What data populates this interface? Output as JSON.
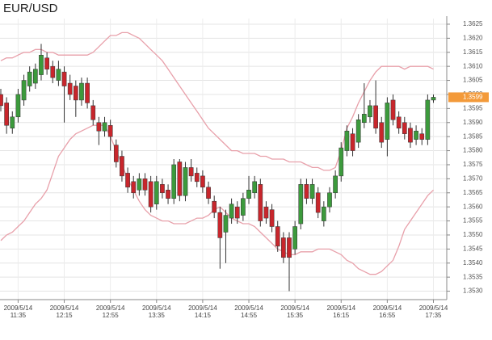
{
  "chart_data": {
    "type": "candlestick",
    "title": "EUR/USD",
    "categories": [
      null,
      null,
      null,
      "2009/5/14 11:35",
      null,
      null,
      null,
      null,
      null,
      null,
      null,
      "2009/5/14 12:15",
      null,
      null,
      null,
      null,
      null,
      null,
      null,
      "2009/5/14 12:55",
      null,
      null,
      null,
      null,
      null,
      null,
      null,
      "2009/5/14 13:35",
      null,
      null,
      null,
      null,
      null,
      null,
      null,
      "2009/5/14 14:15",
      null,
      null,
      null,
      null,
      null,
      null,
      null,
      "2009/5/14 14:55",
      null,
      null,
      null,
      null,
      null,
      null,
      null,
      "2009/5/14 15:35",
      null,
      null,
      null,
      null,
      null,
      null,
      null,
      "2009/5/14 16:15",
      null,
      null,
      null,
      null,
      null,
      null,
      null,
      "2009/5/14 16:55",
      null,
      null,
      null,
      null,
      null,
      null,
      null,
      "2009/5/14 17:35"
    ],
    "open": [
      1.36,
      1.3597,
      1.3588,
      1.3592,
      1.3598,
      1.3603,
      1.3604,
      1.3607,
      1.3613,
      1.361,
      1.3605,
      1.3608,
      1.3604,
      1.3603,
      1.3598,
      1.3604,
      1.3596,
      1.359,
      1.3587,
      1.3589,
      1.3582,
      1.3578,
      1.3572,
      1.3569,
      1.3566,
      1.357,
      1.3569,
      1.3561,
      1.3568,
      1.3566,
      1.3563,
      1.3576,
      1.3564,
      1.3574,
      1.3572,
      1.3571,
      1.3567,
      1.3562,
      1.3558,
      1.3551,
      1.3556,
      1.356,
      1.3557,
      1.3563,
      1.3565,
      1.3568,
      1.356,
      1.3559,
      1.3553,
      1.3549,
      1.3549,
      1.3545,
      1.3554,
      1.3568,
      1.3563,
      1.3565,
      1.3555,
      1.356,
      1.3565,
      1.3571,
      1.358,
      1.3586,
      1.3583,
      1.359,
      1.3592,
      1.3596,
      1.359,
      1.3584,
      1.3598,
      1.3592,
      1.359,
      1.3588,
      1.3584,
      1.3586,
      1.3584,
      1.3598
    ],
    "high": [
      1.3602,
      1.3599,
      1.3594,
      1.3602,
      1.3607,
      1.361,
      1.3611,
      1.3618,
      1.3615,
      1.3612,
      1.3612,
      1.361,
      1.3607,
      1.3605,
      1.3606,
      1.3606,
      1.3598,
      1.3592,
      1.3592,
      1.3591,
      1.3584,
      1.358,
      1.3574,
      1.3571,
      1.3572,
      1.3572,
      1.3571,
      1.3571,
      1.357,
      1.3568,
      1.3577,
      1.3577,
      1.3576,
      1.3577,
      1.3574,
      1.3573,
      1.3569,
      1.3564,
      1.356,
      1.3559,
      1.3563,
      1.3562,
      1.3565,
      1.3571,
      1.3571,
      1.357,
      1.3562,
      1.3561,
      1.3555,
      1.3551,
      1.3551,
      1.3555,
      1.357,
      1.357,
      1.357,
      1.3567,
      1.3562,
      1.3567,
      1.3573,
      1.3583,
      1.3589,
      1.3588,
      1.3593,
      1.3604,
      1.3598,
      1.3605,
      1.3592,
      1.3599,
      1.36,
      1.3594,
      1.3592,
      1.359,
      1.3589,
      1.3588,
      1.36,
      1.36
    ],
    "low": [
      1.3594,
      1.3586,
      1.3586,
      1.359,
      1.3596,
      1.3601,
      1.3602,
      1.3605,
      1.3607,
      1.3604,
      1.3603,
      1.359,
      1.3598,
      1.3592,
      1.3596,
      1.3595,
      1.3589,
      1.3582,
      1.3585,
      1.358,
      1.3574,
      1.3569,
      1.3565,
      1.3563,
      1.3564,
      1.3564,
      1.3558,
      1.3559,
      1.3563,
      1.3561,
      1.3561,
      1.3562,
      1.3562,
      1.3569,
      1.3567,
      1.3565,
      1.3561,
      1.3556,
      1.3538,
      1.354,
      1.3554,
      1.3554,
      1.3555,
      1.3561,
      1.3563,
      1.3553,
      1.3554,
      1.3551,
      1.3544,
      1.354,
      1.353,
      1.3543,
      1.3552,
      1.3561,
      1.3561,
      1.3556,
      1.3553,
      1.3558,
      1.3563,
      1.3569,
      1.3578,
      1.3578,
      1.3581,
      1.3588,
      1.359,
      1.3586,
      1.3581,
      1.3578,
      1.3589,
      1.3586,
      1.3584,
      1.3581,
      1.3582,
      1.3582,
      1.3582,
      1.3597
    ],
    "close": [
      1.3596,
      1.3589,
      1.3592,
      1.36,
      1.3605,
      1.3608,
      1.3609,
      1.3614,
      1.3609,
      1.3606,
      1.3609,
      1.3603,
      1.36,
      1.3598,
      1.3604,
      1.3597,
      1.3591,
      1.3587,
      1.359,
      1.3585,
      1.3576,
      1.3571,
      1.3567,
      1.3565,
      1.357,
      1.3566,
      1.356,
      1.3569,
      1.3565,
      1.3563,
      1.3575,
      1.3564,
      1.3574,
      1.3571,
      1.3569,
      1.3567,
      1.3563,
      1.3558,
      1.3549,
      1.3557,
      1.3561,
      1.3556,
      1.3563,
      1.3566,
      1.3569,
      1.3555,
      1.3556,
      1.3553,
      1.3546,
      1.3542,
      1.3542,
      1.3553,
      1.3568,
      1.3563,
      1.3568,
      1.3558,
      1.356,
      1.3565,
      1.3571,
      1.3581,
      1.3587,
      1.358,
      1.3591,
      1.3593,
      1.3596,
      1.3588,
      1.3583,
      1.3597,
      1.3591,
      1.3588,
      1.3586,
      1.3583,
      1.3587,
      1.3584,
      1.3598,
      1.3599
    ],
    "up_color": "#3c9a3c",
    "down_color": "#c8262c",
    "overlays": [
      {
        "color": "#e8a0aa",
        "values": [
          1.3612,
          1.3613,
          1.3613,
          1.3614,
          1.3615,
          1.3615,
          1.3616,
          1.3616,
          1.3615,
          1.3615,
          1.3614,
          1.3614,
          1.3614,
          1.3614,
          1.3614,
          1.3614,
          1.3615,
          1.3617,
          1.3619,
          1.3621,
          1.3621,
          1.3622,
          1.3622,
          1.3621,
          1.362,
          1.3618,
          1.3616,
          1.3614,
          1.3612,
          1.3609,
          1.3606,
          1.3603,
          1.36,
          1.3597,
          1.3594,
          1.3591,
          1.3588,
          1.3586,
          1.3584,
          1.3582,
          1.358,
          1.358,
          1.3579,
          1.3579,
          1.3579,
          1.3578,
          1.3578,
          1.3577,
          1.3577,
          1.3577,
          1.3576,
          1.3576,
          1.3576,
          1.3575,
          1.3574,
          1.3574,
          1.3573,
          1.3573,
          1.3574,
          1.358,
          1.3588,
          1.3592,
          1.3597,
          1.3601,
          1.3605,
          1.3608,
          1.361,
          1.361,
          1.361,
          1.361,
          1.3609,
          1.361,
          1.361,
          1.361,
          1.361,
          1.3609
        ]
      },
      {
        "color": "#e8a0aa",
        "values": [
          1.3548,
          1.355,
          1.3551,
          1.3553,
          1.3555,
          1.3558,
          1.3561,
          1.3563,
          1.3566,
          1.3572,
          1.3578,
          1.3581,
          1.3584,
          1.3586,
          1.3587,
          1.3588,
          1.3589,
          1.3589,
          1.3589,
          1.3585,
          1.358,
          1.3575,
          1.357,
          1.3566,
          1.3562,
          1.3559,
          1.3557,
          1.3556,
          1.3555,
          1.3555,
          1.3554,
          1.3554,
          1.3554,
          1.3555,
          1.3556,
          1.3556,
          1.3557,
          1.3559,
          1.356,
          1.3558,
          1.3556,
          1.3555,
          1.3554,
          1.3554,
          1.3553,
          1.3551,
          1.3549,
          1.3547,
          1.3545,
          1.3544,
          1.3543,
          1.3543,
          1.3544,
          1.3544,
          1.3544,
          1.3545,
          1.3545,
          1.3545,
          1.3544,
          1.3543,
          1.3541,
          1.354,
          1.3538,
          1.3537,
          1.3536,
          1.3536,
          1.3537,
          1.3539,
          1.3541,
          1.3546,
          1.3552,
          1.3555,
          1.3558,
          1.3561,
          1.3564,
          1.3566
        ]
      }
    ],
    "last_price": 1.3599,
    "last_price_color": "#f39a3a",
    "ylim": [
      1.3527,
      1.3627
    ],
    "yticks": [
      {
        "value": 1.353,
        "label": "1.3530"
      },
      1.3535,
      {
        "value": 1.354,
        "label": "1.3540"
      },
      1.3545,
      {
        "value": 1.355,
        "label": "1.3550"
      },
      1.3555,
      {
        "value": 1.356,
        "label": "1.3560"
      },
      1.3565,
      {
        "value": 1.357,
        "label": "1.3570"
      },
      1.3575,
      {
        "value": 1.358,
        "label": "1.3580"
      },
      1.3585,
      {
        "value": 1.359,
        "label": "1.3590"
      },
      1.3595,
      {
        "value": 1.36,
        "label": "1.3600"
      },
      1.3605,
      {
        "value": 1.361,
        "label": "1.3610"
      },
      1.3615,
      {
        "value": 1.362,
        "label": "1.3620"
      },
      1.3625
    ],
    "grid": true
  }
}
